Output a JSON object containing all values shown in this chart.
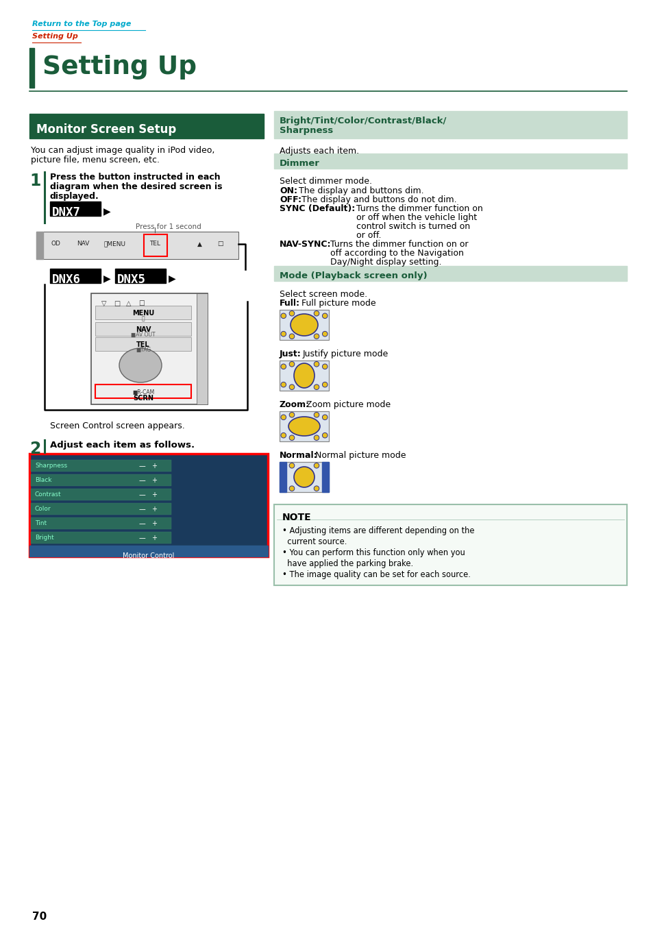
{
  "bg_color": "#ffffff",
  "top_link1": "Return to the Top page",
  "top_link2": "Setting Up",
  "title": "Setting Up",
  "section_title": "Monitor Screen Setup",
  "section_bg": "#1a5c3a",
  "intro_text1": "You can adjust image quality in iPod video,",
  "intro_text2": "picture file, menu screen, etc.",
  "step1_line1": "Press the button instructed in each",
  "step1_line2": "diagram when the desired screen is",
  "step1_line3": "displayed.",
  "press_text": "Press for 1 second",
  "screen_control_text": "Screen Control screen appears.",
  "step2_text": "Adjust each item as follows.",
  "bright_header1": "Bright/Tint/Color/Contrast/Black/",
  "bright_header2": "Sharpness",
  "adjusts_text": "Adjusts each item.",
  "dimmer_header": "Dimmer",
  "select_dimmer": "Select dimmer mode.",
  "mode_header": "Mode (Playback screen only)",
  "select_mode": "Select screen mode.",
  "note_header": "NOTE",
  "note1": "• Adjusting items are different depending on the",
  "note1b": "  current source.",
  "note2": "• You can perform this function only when you",
  "note2b": "  have applied the parking brake.",
  "note3": "• The image quality can be set for each source.",
  "page_number": "70",
  "dark_green": "#1a5c3a",
  "light_green_bg": "#c8ddd0",
  "link_blue": "#00aacc",
  "link_red": "#cc2200",
  "note_border": "#9abfaa",
  "note_bg": "#f5faf6"
}
